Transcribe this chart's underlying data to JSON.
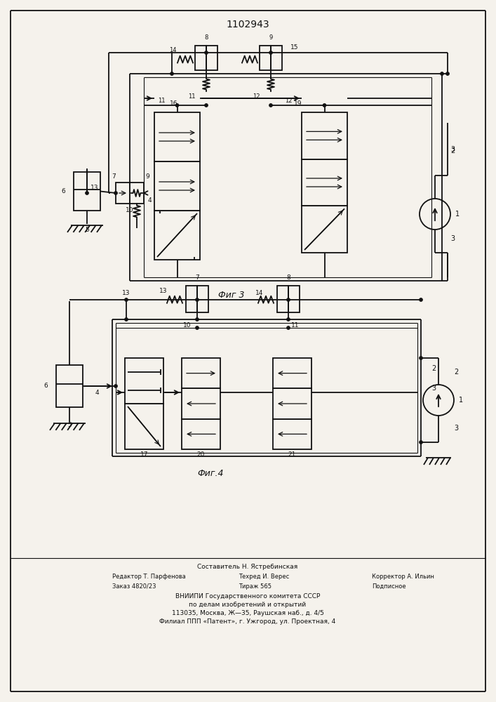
{
  "patent_number": "1102943",
  "fig3_label": "Фиг 3",
  "fig4_label": "Фиг.4",
  "footer_line1": "Составитель Н. Ястребинская",
  "footer_line2_left": "Редактор Т. Парфенова",
  "footer_line2_mid": "Техред И. Верес",
  "footer_line2_right": "Корректор А. Ильин",
  "footer_line3_left": "Заказ 4820/23",
  "footer_line3_mid": "Тираж 565",
  "footer_line3_right": "Подписное",
  "footer_line4": "ВНИИПИ Государственного комитета СССР",
  "footer_line5": "по делам изобретений и открытий",
  "footer_line6": "113035, Москва, Ж—35, Раушская наб., д. 4/5",
  "footer_line7": "Филиал ППП «Патент», г. Ужгород, ул. Проектная, 4",
  "bg_color": "#f5f2ec",
  "line_color": "#111111",
  "text_color": "#111111"
}
